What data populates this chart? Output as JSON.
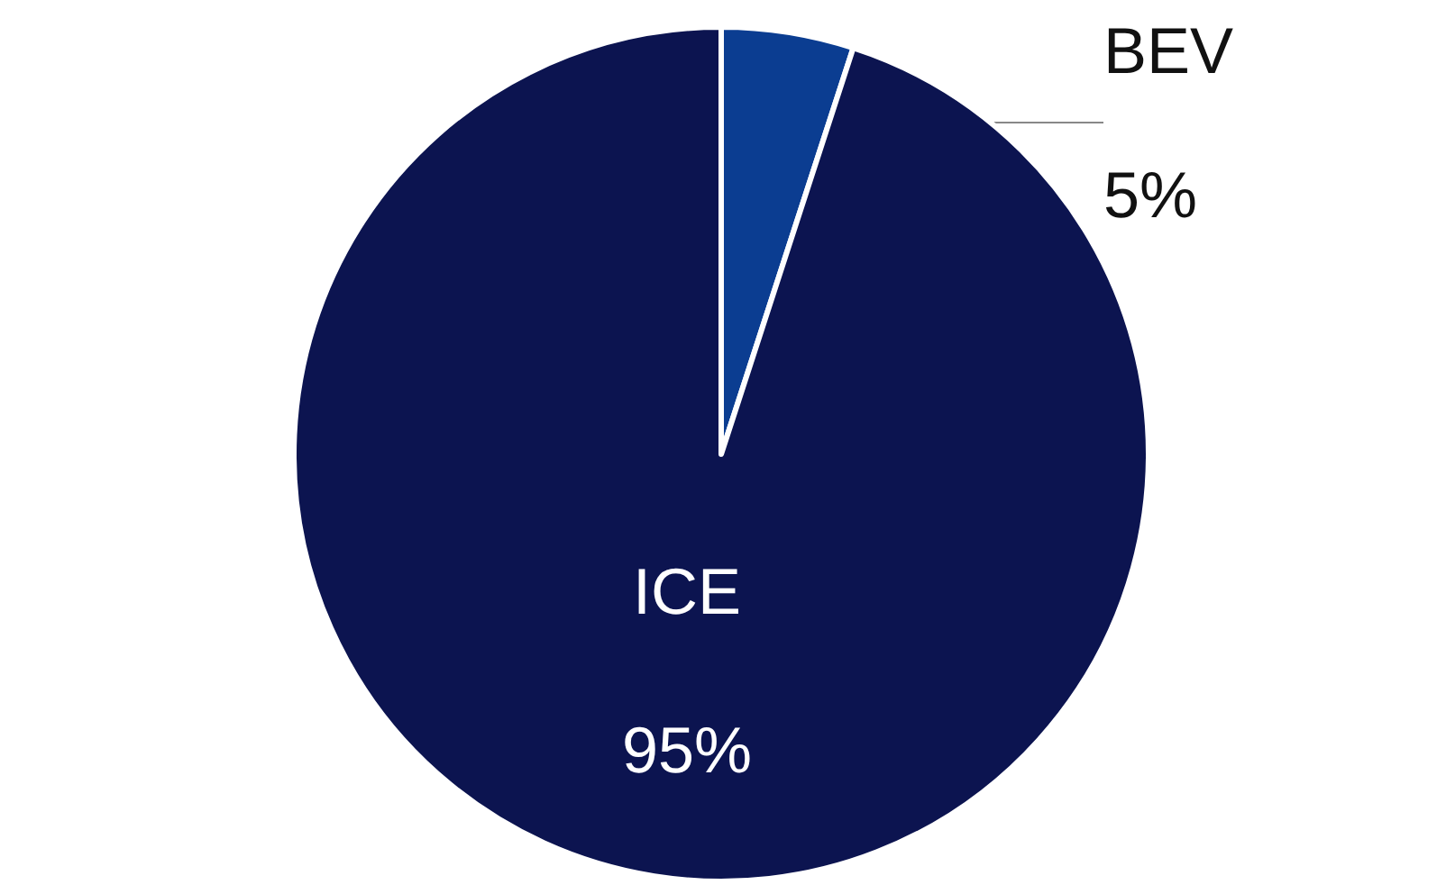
{
  "chart_data": {
    "type": "pie",
    "categories": [
      "BEV",
      "ICE"
    ],
    "values": [
      5,
      95
    ],
    "value_labels": [
      "5%",
      "95%"
    ],
    "colors": [
      "#0b3d91",
      "#0c1450"
    ],
    "legend": false
  }
}
